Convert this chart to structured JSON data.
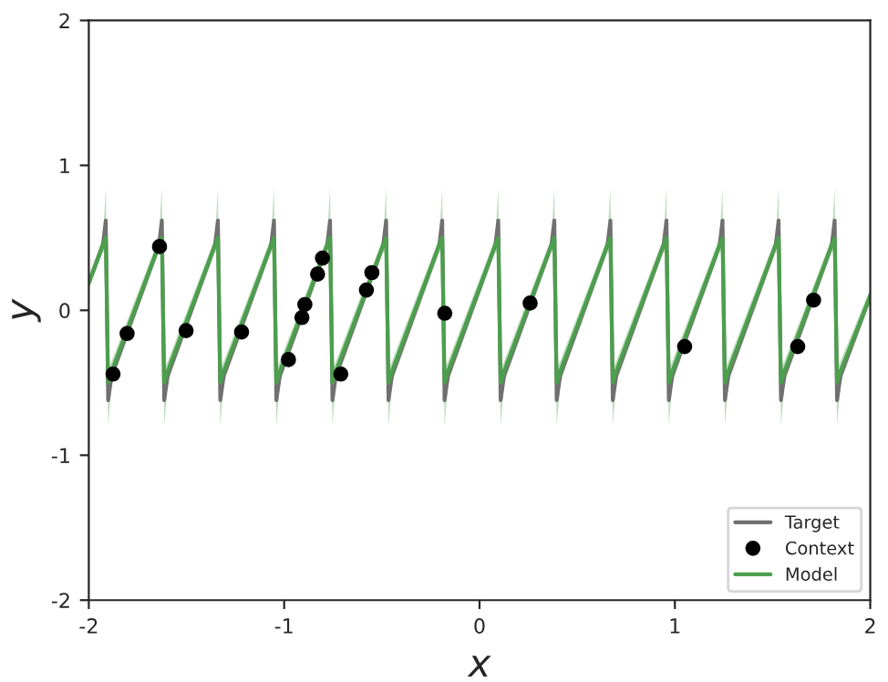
{
  "chart_data": {
    "type": "line",
    "xlabel": "x",
    "ylabel": "y",
    "x": [
      -2.0,
      -1.928,
      -1.913,
      -1.901,
      -1.883,
      -1.641,
      -1.626,
      -1.614,
      -1.596,
      -1.354,
      -1.339,
      -1.327,
      -1.309,
      -1.067,
      -1.052,
      -1.04,
      -1.022,
      -0.78,
      -0.765,
      -0.753,
      -0.735,
      -0.493,
      -0.478,
      -0.466,
      -0.448,
      -0.206,
      -0.191,
      -0.179,
      -0.161,
      0.081,
      0.096,
      0.108,
      0.126,
      0.368,
      0.383,
      0.395,
      0.413,
      0.655,
      0.67,
      0.682,
      0.7,
      0.942,
      0.957,
      0.969,
      0.987,
      1.229,
      1.244,
      1.256,
      1.274,
      1.516,
      1.531,
      1.543,
      1.561,
      1.803,
      1.818,
      1.83,
      1.848,
      2.0
    ],
    "series": [
      {
        "name": "Target",
        "color": "#707070",
        "values": [
          0.19,
          0.45,
          0.62,
          -0.62,
          -0.45,
          0.45,
          0.62,
          -0.62,
          -0.45,
          0.45,
          0.62,
          -0.62,
          -0.45,
          0.45,
          0.62,
          -0.62,
          -0.45,
          0.45,
          0.62,
          -0.62,
          -0.45,
          0.45,
          0.62,
          -0.62,
          -0.45,
          0.45,
          0.62,
          -0.62,
          -0.45,
          0.45,
          0.62,
          -0.62,
          -0.45,
          0.45,
          0.62,
          -0.62,
          -0.45,
          0.45,
          0.62,
          -0.62,
          -0.45,
          0.45,
          0.62,
          -0.62,
          -0.45,
          0.45,
          0.62,
          -0.62,
          -0.45,
          0.45,
          0.62,
          -0.62,
          -0.45,
          0.45,
          0.62,
          -0.62,
          -0.45,
          0.1
        ]
      },
      {
        "name": "Context",
        "type": "scatter",
        "marker": "circle",
        "color": "#000000",
        "x": [
          -1.876,
          -1.804,
          -1.638,
          -1.502,
          -1.218,
          -0.978,
          -0.909,
          -0.894,
          -0.829,
          -0.804,
          -0.71,
          -0.579,
          -0.551,
          -0.178,
          0.259,
          1.05,
          1.629,
          1.71
        ],
        "values": [
          -0.44,
          -0.16,
          0.44,
          -0.14,
          -0.15,
          -0.34,
          -0.05,
          0.04,
          0.25,
          0.36,
          -0.44,
          0.14,
          0.26,
          -0.02,
          0.05,
          -0.25,
          -0.25,
          0.07
        ]
      },
      {
        "name": "Model",
        "color": "#4c9f4c",
        "values": [
          0.19,
          0.45,
          0.5,
          -0.5,
          -0.42,
          0.45,
          0.5,
          -0.5,
          -0.42,
          0.45,
          0.5,
          -0.5,
          -0.42,
          0.45,
          0.5,
          -0.5,
          -0.42,
          0.45,
          0.5,
          -0.5,
          -0.42,
          0.45,
          0.5,
          -0.5,
          -0.42,
          0.45,
          0.5,
          -0.5,
          -0.42,
          0.45,
          0.5,
          -0.5,
          -0.42,
          0.45,
          0.5,
          -0.5,
          -0.42,
          0.45,
          0.5,
          -0.5,
          -0.42,
          0.45,
          0.5,
          -0.5,
          -0.42,
          0.45,
          0.5,
          -0.5,
          -0.42,
          0.45,
          0.5,
          -0.5,
          -0.42,
          0.45,
          0.5,
          -0.5,
          -0.42,
          0.1
        ],
        "lower": [
          0.14,
          0.4,
          0.4,
          -0.8,
          -0.5,
          0.4,
          0.4,
          -0.8,
          -0.5,
          0.4,
          0.4,
          -0.8,
          -0.5,
          0.4,
          0.4,
          -0.8,
          -0.5,
          0.4,
          0.4,
          -0.8,
          -0.5,
          0.4,
          0.4,
          -0.8,
          -0.5,
          0.4,
          0.4,
          -0.8,
          -0.5,
          0.4,
          0.4,
          -0.8,
          -0.5,
          0.4,
          0.4,
          -0.8,
          -0.5,
          0.4,
          0.4,
          -0.8,
          -0.5,
          0.4,
          0.4,
          -0.8,
          -0.5,
          0.4,
          0.4,
          -0.8,
          -0.5,
          0.4,
          0.4,
          -0.8,
          -0.5,
          0.4,
          0.4,
          -0.8,
          -0.5,
          0.05
        ],
        "upper": [
          0.24,
          0.5,
          0.85,
          -0.4,
          -0.35,
          0.5,
          0.85,
          -0.4,
          -0.35,
          0.5,
          0.85,
          -0.4,
          -0.35,
          0.5,
          0.85,
          -0.4,
          -0.35,
          0.5,
          0.85,
          -0.4,
          -0.35,
          0.5,
          0.85,
          -0.4,
          -0.35,
          0.5,
          0.85,
          -0.4,
          -0.35,
          0.5,
          0.85,
          -0.4,
          -0.35,
          0.5,
          0.85,
          -0.4,
          -0.35,
          0.5,
          0.85,
          -0.4,
          -0.35,
          0.5,
          0.85,
          -0.4,
          -0.35,
          0.5,
          0.85,
          -0.4,
          -0.35,
          0.5,
          0.85,
          -0.4,
          -0.35,
          0.5,
          0.85,
          -0.4,
          -0.35,
          0.15
        ]
      }
    ],
    "xlim": [
      -2,
      2
    ],
    "ylim": [
      -2,
      2
    ],
    "xticks": [
      -2,
      -1,
      0,
      1,
      2
    ],
    "yticks": [
      -2,
      -1,
      0,
      1,
      2
    ],
    "grid": false,
    "legend": "bottom right"
  }
}
